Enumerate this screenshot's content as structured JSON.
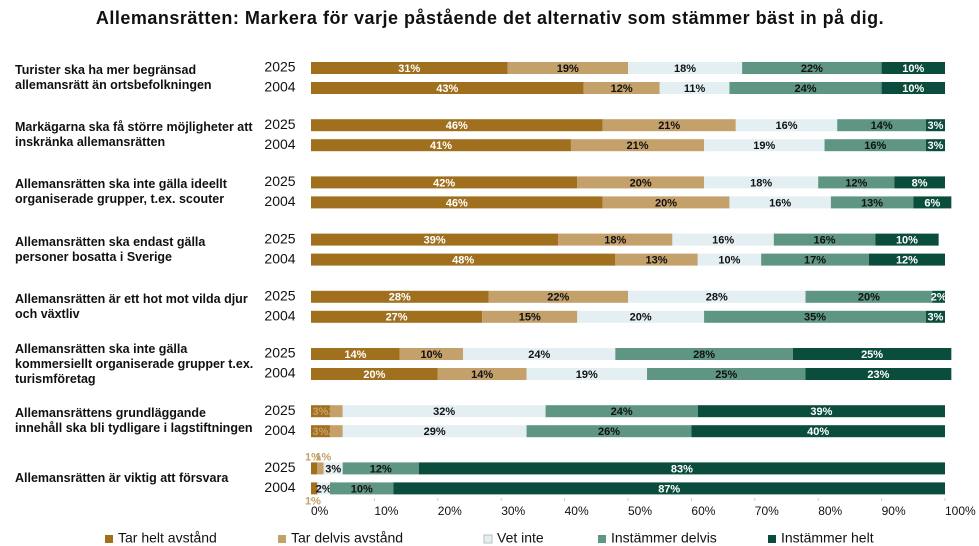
{
  "chart_data": {
    "type": "stacked_bar_horizontal",
    "title": "Allemansrätten: Markera för varje påstående det alternativ som stämmer bäst in på dig.",
    "groups": [
      "Turister ska ha mer begränsad allemansrätt än ortsbefolkningen",
      "Markägarna ska få större möjligheter att inskränka allemansrätten",
      "Allemansrätten ska inte gälla ideellt organiserade grupper, t.ex. scouter",
      "Allemansrätten ska endast gälla personer bosatta i Sverige",
      "Allemansrätten är ett hot mot vilda djur och växtliv",
      "Allemansrätten ska inte gälla kommersiellt organiserade grupper t.ex. turismföretag",
      "Allemansrättens grundläggande innehåll ska bli tydligare i lagstiftningen",
      "Allemansrätten är viktig att försvara"
    ],
    "categories": [
      "2025",
      "2004",
      "2025",
      "2004",
      "2025",
      "2004",
      "2025",
      "2004",
      "2025",
      "2004",
      "2025",
      "2004",
      "2025",
      "2004",
      "2025",
      "2004"
    ],
    "series": [
      {
        "name": "Tar helt avstånd",
        "color": "#a0701f",
        "values": [
          31,
          43,
          46,
          41,
          42,
          46,
          39,
          48,
          28,
          27,
          14,
          20,
          3,
          3,
          1,
          1
        ],
        "value_labels": [
          "31%",
          "43%",
          "46%",
          "41%",
          "42%",
          "46%",
          "39%",
          "48%",
          "28%",
          "27%",
          "14%",
          "20%",
          "3%",
          "3%",
          "1%",
          "1%"
        ]
      },
      {
        "name": "Tar delvis avstånd",
        "color": "#c4a06a",
        "values": [
          19,
          12,
          21,
          21,
          20,
          20,
          18,
          13,
          22,
          15,
          10,
          14,
          2,
          2,
          1,
          0
        ],
        "value_labels": [
          "19%",
          "12%",
          "21%",
          "21%",
          "20%",
          "20%",
          "18%",
          "13%",
          "22%",
          "15%",
          "10%",
          "14%",
          "2%",
          "2%",
          "1%",
          null
        ]
      },
      {
        "name": "Vet inte",
        "color": "#e4eff3",
        "values": [
          18,
          11,
          16,
          19,
          18,
          16,
          16,
          10,
          28,
          20,
          24,
          19,
          32,
          29,
          3,
          2
        ],
        "value_labels": [
          "18%",
          "11%",
          "16%",
          "19%",
          "18%",
          "16%",
          "16%",
          "10%",
          "28%",
          "20%",
          "24%",
          "19%",
          "32%",
          "29%",
          "3%",
          "2%"
        ]
      },
      {
        "name": "Instämmer delvis",
        "color": "#5e9683",
        "values": [
          22,
          24,
          14,
          16,
          12,
          13,
          16,
          17,
          20,
          35,
          28,
          25,
          24,
          26,
          12,
          10
        ],
        "value_labels": [
          "22%",
          "24%",
          "14%",
          "16%",
          "12%",
          "13%",
          "16%",
          "17%",
          "20%",
          "35%",
          "28%",
          "25%",
          "24%",
          "26%",
          "12%",
          "10%"
        ]
      },
      {
        "name": "Instämmer helt",
        "color": "#0b4d3c",
        "values": [
          10,
          10,
          3,
          3,
          8,
          6,
          10,
          12,
          2,
          3,
          25,
          23,
          39,
          40,
          83,
          87
        ],
        "value_labels": [
          "10%",
          "10%",
          "3%",
          "3%",
          "8%",
          "6%",
          "10%",
          "12%",
          "2%",
          "3%",
          "25%",
          "23%",
          "39%",
          "40%",
          "83%",
          "87%"
        ]
      }
    ],
    "xlim": [
      0,
      100
    ],
    "xticks": [
      {
        "value": 0,
        "label": "0%"
      },
      {
        "value": 10,
        "label": "10%"
      },
      {
        "value": 20,
        "label": "20%"
      },
      {
        "value": 30,
        "label": "30%"
      },
      {
        "value": 40,
        "label": "40%"
      },
      {
        "value": 50,
        "label": "50%"
      },
      {
        "value": 60,
        "label": "60%"
      },
      {
        "value": 70,
        "label": "70%"
      },
      {
        "value": 80,
        "label": "80%"
      },
      {
        "value": 90,
        "label": "90%"
      },
      {
        "value": 100,
        "label": "100%"
      }
    ],
    "legend": "bottom"
  }
}
